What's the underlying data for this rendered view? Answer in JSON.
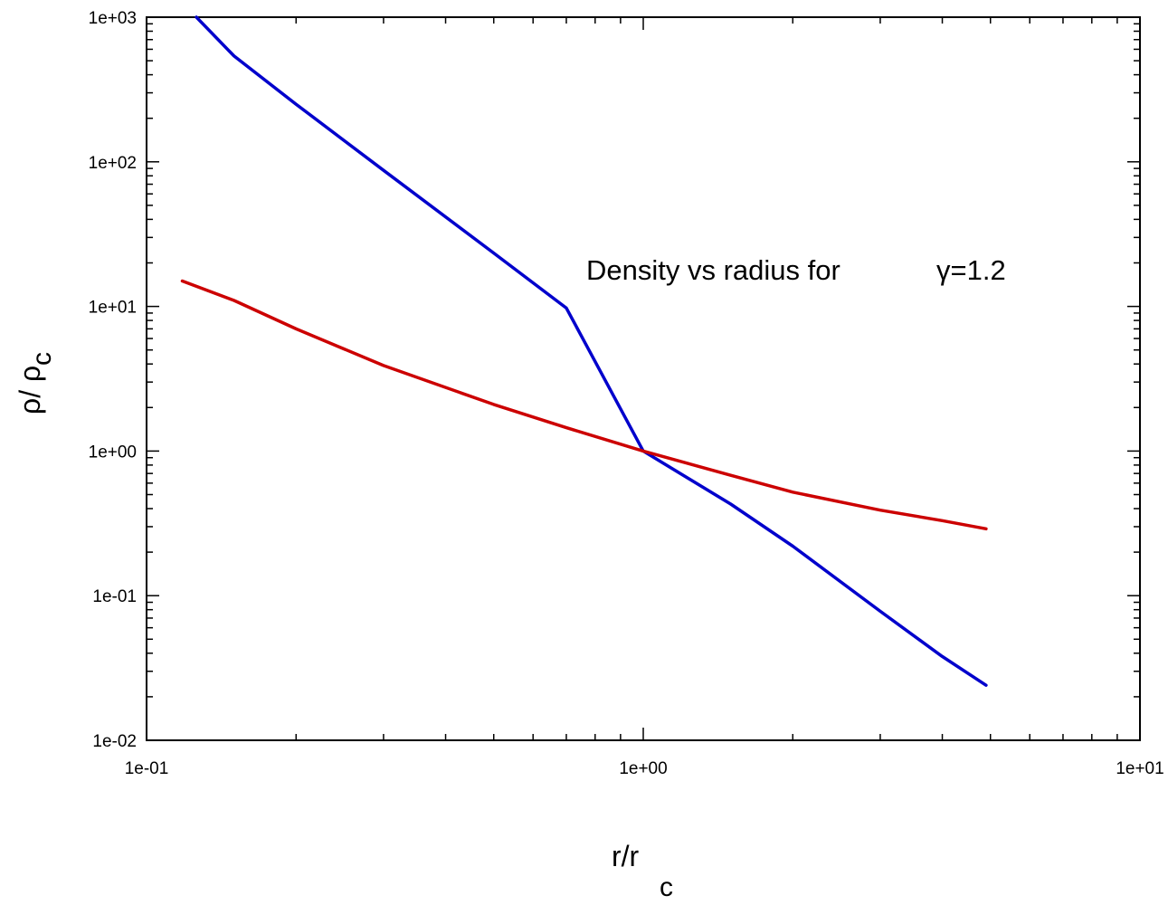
{
  "chart_data": {
    "type": "line",
    "title": "",
    "annotation": {
      "text": "Density vs radius for",
      "symbol": "γ=1.2"
    },
    "xlabel": {
      "main": "r/r",
      "subscript": "c"
    },
    "ylabel": {
      "main": "ρ/ ρ",
      "subscript": "c"
    },
    "xscale": "log",
    "yscale": "log",
    "xlim": [
      0.1,
      10
    ],
    "ylim": [
      0.01,
      1000
    ],
    "xticks": [
      {
        "value": 0.1,
        "label": "1e-01"
      },
      {
        "value": 1,
        "label": "1e+00"
      },
      {
        "value": 10,
        "label": "1e+01"
      }
    ],
    "yticks": [
      {
        "value": 0.01,
        "label": "1e-02"
      },
      {
        "value": 0.1,
        "label": "1e-01"
      },
      {
        "value": 1,
        "label": "1e+00"
      },
      {
        "value": 10,
        "label": "1e+01"
      },
      {
        "value": 100,
        "label": "1e+02"
      },
      {
        "value": 1000,
        "label": "1e+03"
      }
    ],
    "grid": false,
    "legend": "none",
    "series": [
      {
        "color": "#0000cc",
        "x": [
          0.126,
          0.15,
          0.2,
          0.3,
          0.5,
          0.7,
          1.0,
          1.5,
          2.0,
          3.0,
          4.0,
          4.9
        ],
        "y": [
          1000,
          539,
          250,
          87.3,
          23.4,
          9.75,
          1.0,
          0.43,
          0.22,
          0.078,
          0.038,
          0.024
        ]
      },
      {
        "color": "#cc0000",
        "x": [
          0.118,
          0.15,
          0.2,
          0.3,
          0.5,
          0.7,
          1.0,
          1.5,
          2.0,
          3.0,
          4.0,
          4.9
        ],
        "y": [
          15.0,
          11.0,
          7.0,
          3.9,
          2.1,
          1.45,
          1.0,
          0.68,
          0.52,
          0.39,
          0.33,
          0.29
        ]
      }
    ]
  }
}
